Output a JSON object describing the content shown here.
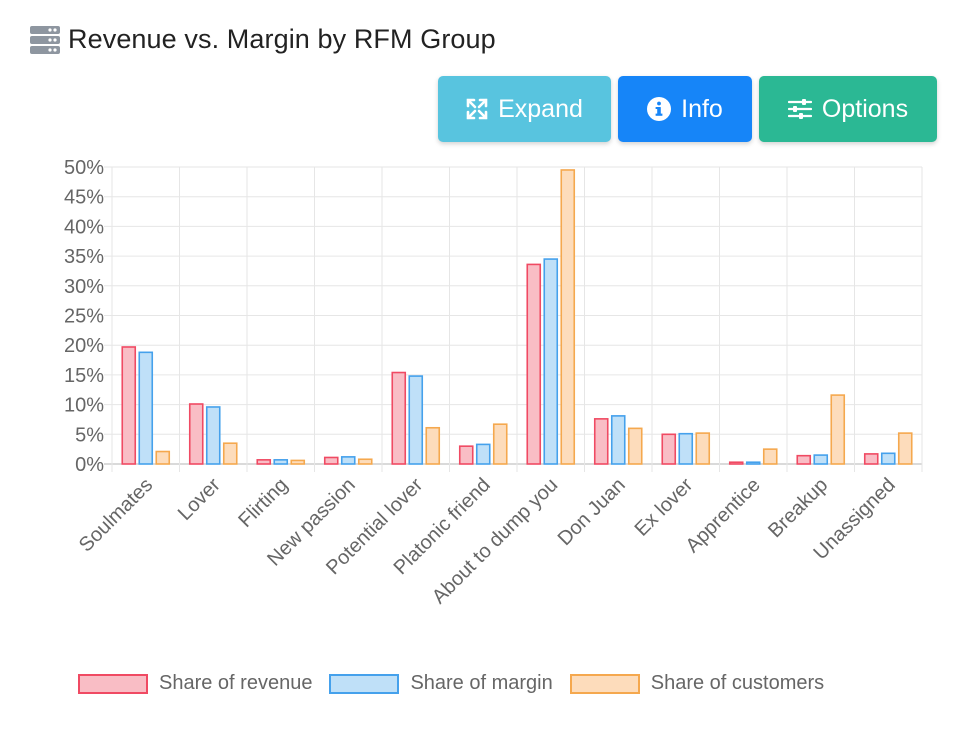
{
  "header": {
    "title": "Revenue vs. Margin by RFM Group",
    "icon": "server-icon"
  },
  "toolbar": {
    "expand_label": "Expand",
    "info_label": "Info",
    "options_label": "Options"
  },
  "colors": {
    "revenue_fill": "#f9bdc5",
    "revenue_stroke": "#f04a63",
    "margin_fill": "#bfe0f8",
    "margin_stroke": "#45a1ec",
    "customers_fill": "#fddcbb",
    "customers_stroke": "#f5a84e",
    "expand": "#58c4df",
    "info": "#1685f8",
    "options": "#2bb894"
  },
  "chart_data": {
    "type": "bar",
    "title": "Revenue vs. Margin by RFM Group",
    "xlabel": "",
    "ylabel": "",
    "ylim": [
      0,
      50
    ],
    "y_tick_step": 5,
    "y_tick_format": "percent",
    "grid": true,
    "legend_position": "bottom",
    "categories": [
      "Soulmates",
      "Lover",
      "Flirting",
      "New passion",
      "Potential lover",
      "Platonic friend",
      "About to dump you",
      "Don Juan",
      "Ex lover",
      "Apprentice",
      "Breakup",
      "Unassigned"
    ],
    "series": [
      {
        "name": "Share of revenue",
        "values": [
          19.7,
          10.1,
          0.7,
          1.1,
          15.4,
          3.0,
          33.6,
          7.6,
          5.0,
          0.3,
          1.4,
          1.7
        ]
      },
      {
        "name": "Share of margin",
        "values": [
          18.8,
          9.6,
          0.7,
          1.2,
          14.8,
          3.3,
          34.5,
          8.1,
          5.1,
          0.3,
          1.5,
          1.8
        ]
      },
      {
        "name": "Share of customers",
        "values": [
          2.1,
          3.5,
          0.6,
          0.8,
          6.1,
          6.7,
          49.5,
          6.0,
          5.2,
          2.5,
          11.6,
          5.2
        ]
      }
    ]
  }
}
